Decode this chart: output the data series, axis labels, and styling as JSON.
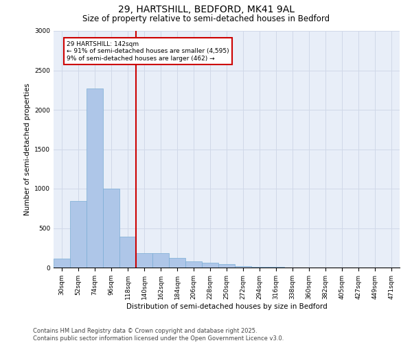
{
  "title_line1": "29, HARTSHILL, BEDFORD, MK41 9AL",
  "title_line2": "Size of property relative to semi-detached houses in Bedford",
  "xlabel": "Distribution of semi-detached houses by size in Bedford",
  "ylabel": "Number of semi-detached properties",
  "categories": [
    "30sqm",
    "52sqm",
    "74sqm",
    "96sqm",
    "118sqm",
    "140sqm",
    "162sqm",
    "184sqm",
    "206sqm",
    "228sqm",
    "250sqm",
    "272sqm",
    "294sqm",
    "316sqm",
    "338sqm",
    "360sqm",
    "382sqm",
    "405sqm",
    "427sqm",
    "449sqm",
    "471sqm"
  ],
  "values": [
    110,
    840,
    2270,
    1000,
    390,
    185,
    185,
    120,
    80,
    60,
    40,
    20,
    10,
    5,
    3,
    2,
    2,
    1,
    1,
    0,
    0
  ],
  "bar_color": "#aec6e8",
  "bar_edge_color": "#7aadd4",
  "vline_x_idx": 5,
  "vline_color": "#cc0000",
  "vline_label": "29 HARTSHILL: 142sqm",
  "annotation_smaller": "← 91% of semi-detached houses are smaller (4,595)",
  "annotation_larger": "9% of semi-detached houses are larger (462) →",
  "box_color": "#cc0000",
  "ylim": [
    0,
    3000
  ],
  "yticks": [
    0,
    500,
    1000,
    1500,
    2000,
    2500,
    3000
  ],
  "grid_color": "#d0d8e8",
  "background_color": "#e8eef8",
  "footnote_line1": "Contains HM Land Registry data © Crown copyright and database right 2025.",
  "footnote_line2": "Contains public sector information licensed under the Open Government Licence v3.0.",
  "title_fontsize": 10,
  "subtitle_fontsize": 8.5,
  "axis_label_fontsize": 7.5,
  "tick_fontsize": 6.5,
  "annot_fontsize": 6.5,
  "footnote_fontsize": 6.0
}
